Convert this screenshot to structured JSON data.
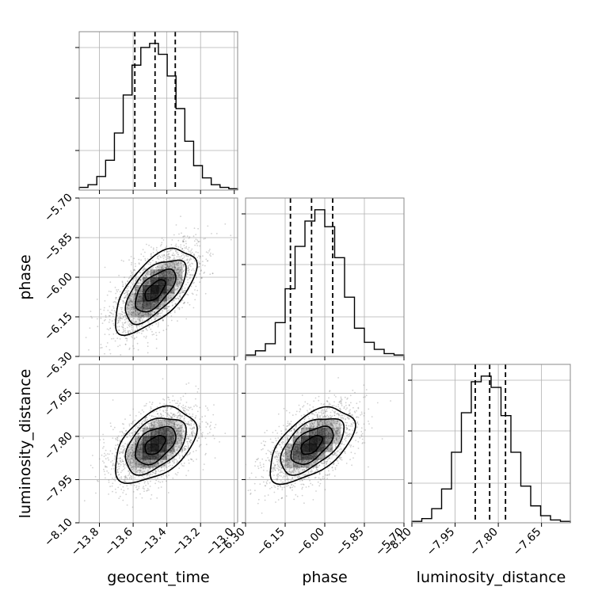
{
  "chart_data": {
    "type": "corner",
    "parameters": [
      "geocent_time",
      "phase",
      "luminosity_distance"
    ],
    "axis_labels": {
      "x": [
        "geocent_time",
        "phase",
        "luminosity_distance"
      ],
      "y": [
        "phase",
        "luminosity_distance"
      ]
    },
    "ranges": {
      "geocent_time": [
        -13.92,
        -12.98
      ],
      "phase": [
        -6.3,
        -5.7
      ],
      "luminosity_distance": [
        -8.1,
        -7.55
      ]
    },
    "ticks": {
      "geocent_time": [
        "-13.8",
        "-13.6",
        "-13.4",
        "-13.2",
        "-13.0"
      ],
      "phase": [
        "-6.30",
        "-6.15",
        "-6.00",
        "-5.85",
        "-5.70"
      ],
      "luminosity_distance": [
        "-8.10",
        "-7.95",
        "-7.80",
        "-7.65"
      ]
    },
    "tick_values": {
      "geocent_time": [
        -13.8,
        -13.6,
        -13.4,
        -13.2,
        -13.0
      ],
      "phase": [
        -6.3,
        -6.15,
        -6.0,
        -5.85,
        -5.7
      ],
      "luminosity_distance": [
        -8.1,
        -7.95,
        -7.8,
        -7.65
      ]
    },
    "quantiles": {
      "geocent_time": [
        -13.59,
        -13.47,
        -13.35
      ],
      "phase": [
        -6.13,
        -6.05,
        -5.97
      ],
      "luminosity_distance": [
        -7.88,
        -7.83,
        -7.775
      ]
    },
    "histograms": {
      "geocent_time": {
        "edges_range": [
          -13.92,
          -12.98
        ],
        "counts": [
          2,
          4,
          10,
          22,
          42,
          70,
          92,
          105,
          108,
          100,
          84,
          60,
          36,
          18,
          9,
          4,
          2,
          1
        ]
      },
      "phase": {
        "edges_range": [
          -6.3,
          -5.7
        ],
        "counts": [
          1,
          4,
          9,
          24,
          48,
          78,
          96,
          104,
          92,
          70,
          42,
          20,
          10,
          5,
          2,
          1
        ]
      },
      "luminosity_distance": {
        "edges_range": [
          -8.1,
          -7.55
        ],
        "counts": [
          1,
          3,
          10,
          24,
          50,
          78,
          100,
          104,
          96,
          76,
          50,
          26,
          12,
          5,
          2,
          1
        ]
      }
    },
    "joint": {
      "phase_vs_geocent_time": {
        "mean": [
          -13.47,
          -6.05
        ],
        "sd": [
          0.12,
          0.08
        ],
        "rho": 0.62
      },
      "luminosity_distance_vs_geocent_time": {
        "mean": [
          -13.47,
          -7.83
        ],
        "sd": [
          0.12,
          0.065
        ],
        "rho": 0.45
      },
      "luminosity_distance_vs_phase": {
        "mean": [
          -6.05,
          -7.83
        ],
        "sd": [
          0.08,
          0.065
        ],
        "rho": 0.55
      }
    },
    "contour_levels_sigma": [
      0.5,
      1.0,
      1.5,
      2.0
    ],
    "grid": true,
    "colors": {
      "lines": "#000000",
      "grid": "#b0b0b0",
      "points": "#7a7a7a",
      "density": "#000000"
    }
  }
}
